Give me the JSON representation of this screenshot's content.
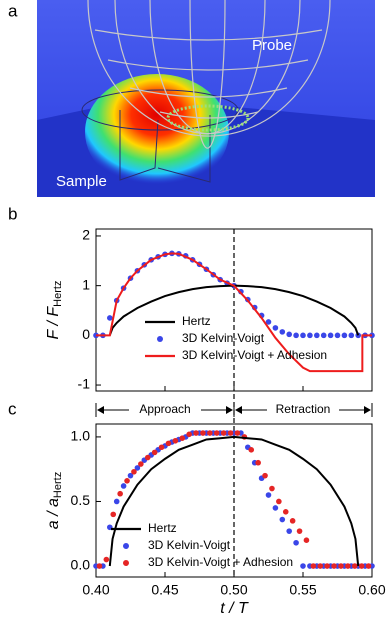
{
  "panel_a": {
    "label": "a",
    "probe": "Probe",
    "sample": "Sample"
  },
  "chart_data": [
    {
      "type": "mixed",
      "panel": "b",
      "ylabel": "F / F",
      "ylabel_sub": "Hertz",
      "xlim": [
        0.4,
        0.6
      ],
      "ylim": [
        -1.12,
        2.14
      ],
      "yticks": [
        -1,
        0,
        1,
        2
      ],
      "vline": 0.5,
      "legend": "lower center",
      "series": [
        {
          "name": "Hertz",
          "style": "line",
          "color": "#000000",
          "x": [
            0.41,
            0.412,
            0.415,
            0.42,
            0.43,
            0.44,
            0.45,
            0.46,
            0.47,
            0.48,
            0.49,
            0.5,
            0.51,
            0.52,
            0.53,
            0.54,
            0.55,
            0.56,
            0.57,
            0.58,
            0.585,
            0.588,
            0.59
          ],
          "values": [
            0,
            0.15,
            0.25,
            0.38,
            0.55,
            0.68,
            0.79,
            0.87,
            0.93,
            0.97,
            0.99,
            1,
            0.99,
            0.97,
            0.93,
            0.87,
            0.79,
            0.68,
            0.55,
            0.38,
            0.25,
            0.15,
            0
          ]
        },
        {
          "name": "3D Kelvin-Voigt",
          "style": "dots",
          "color": "#3a46e8",
          "x": [
            0.4,
            0.405,
            0.41,
            0.415,
            0.42,
            0.425,
            0.43,
            0.435,
            0.44,
            0.445,
            0.45,
            0.455,
            0.46,
            0.465,
            0.47,
            0.475,
            0.48,
            0.485,
            0.49,
            0.495,
            0.5,
            0.505,
            0.51,
            0.515,
            0.52,
            0.525,
            0.53,
            0.535,
            0.54,
            0.545,
            0.55,
            0.555,
            0.56,
            0.565,
            0.57,
            0.575,
            0.58,
            0.585,
            0.59,
            0.595,
            0.6
          ],
          "values": [
            0,
            0,
            0.35,
            0.7,
            0.95,
            1.15,
            1.3,
            1.42,
            1.52,
            1.58,
            1.63,
            1.65,
            1.64,
            1.6,
            1.52,
            1.43,
            1.33,
            1.22,
            1.12,
            1.05,
            1.0,
            0.88,
            0.72,
            0.56,
            0.4,
            0.27,
            0.15,
            0.07,
            0.02,
            0,
            0,
            0,
            0,
            0,
            0,
            0,
            0,
            0,
            0,
            0,
            0
          ]
        },
        {
          "name": "3D Kelvin-Voigt + Adhesion",
          "style": "line",
          "color": "#ee1c1c",
          "x": [
            0.4,
            0.41,
            0.415,
            0.42,
            0.425,
            0.43,
            0.44,
            0.45,
            0.455,
            0.46,
            0.47,
            0.48,
            0.49,
            0.5,
            0.51,
            0.52,
            0.53,
            0.54,
            0.55,
            0.555,
            0.593,
            0.593,
            0.6
          ],
          "values": [
            0,
            0,
            0.7,
            0.95,
            1.15,
            1.3,
            1.52,
            1.63,
            1.65,
            1.64,
            1.52,
            1.33,
            1.12,
            1.0,
            0.7,
            0.35,
            -0.05,
            -0.38,
            -0.65,
            -0.72,
            -0.72,
            0,
            0
          ]
        }
      ]
    },
    {
      "type": "mixed",
      "panel": "c",
      "ylabel": "a / a",
      "ylabel_sub": "Hertz",
      "xlabel": "t / T",
      "xlim": [
        0.4,
        0.6
      ],
      "ylim": [
        -0.085,
        1.1
      ],
      "xticks": [
        {
          "value": 0.4,
          "label": "0.40"
        },
        0.45,
        {
          "value": 0.5,
          "label": "0.50"
        },
        0.55,
        {
          "value": 0.6,
          "label": "0.60"
        }
      ],
      "yticks": [
        {
          "value": 0,
          "label": "0.0"
        },
        0.5,
        {
          "value": 1,
          "label": "1.0"
        }
      ],
      "vline": 0.5,
      "legend": "lower left",
      "phases": [
        {
          "text": "Approach",
          "from": 0.4,
          "to": 0.5
        },
        {
          "text": "Retraction",
          "from": 0.5,
          "to": 0.6
        }
      ],
      "series": [
        {
          "name": "Hertz",
          "style": "line",
          "color": "#000000",
          "x": [
            0.41,
            0.412,
            0.415,
            0.42,
            0.43,
            0.44,
            0.45,
            0.46,
            0.47,
            0.48,
            0.49,
            0.5,
            0.51,
            0.52,
            0.53,
            0.54,
            0.55,
            0.56,
            0.57,
            0.58,
            0.585,
            0.588,
            0.59
          ],
          "values": [
            0,
            0.21,
            0.33,
            0.46,
            0.63,
            0.75,
            0.83,
            0.9,
            0.94,
            0.98,
            0.99,
            1,
            0.99,
            0.98,
            0.94,
            0.9,
            0.83,
            0.75,
            0.63,
            0.46,
            0.33,
            0.21,
            0
          ]
        },
        {
          "name": "3D Kelvin-Voigt",
          "style": "dots",
          "color": "#3a46e8",
          "x": [
            0.4,
            0.405,
            0.41,
            0.415,
            0.42,
            0.425,
            0.43,
            0.435,
            0.44,
            0.445,
            0.45,
            0.455,
            0.46,
            0.465,
            0.47,
            0.475,
            0.48,
            0.485,
            0.49,
            0.495,
            0.5,
            0.505,
            0.51,
            0.515,
            0.52,
            0.525,
            0.53,
            0.535,
            0.54,
            0.545,
            0.55,
            0.555,
            0.56,
            0.565,
            0.57,
            0.575,
            0.58,
            0.585,
            0.59,
            0.595,
            0.6
          ],
          "values": [
            0,
            0,
            0.3,
            0.5,
            0.62,
            0.7,
            0.76,
            0.82,
            0.86,
            0.9,
            0.93,
            0.96,
            0.98,
            1.0,
            1.03,
            1.03,
            1.03,
            1.03,
            1.03,
            1.03,
            1.03,
            1.03,
            0.92,
            0.8,
            0.68,
            0.55,
            0.45,
            0.36,
            0.27,
            0.18,
            0,
            0,
            0,
            0,
            0,
            0,
            0,
            0,
            0,
            0,
            0
          ]
        },
        {
          "name": "3D Kelvin-Voigt + Adhesion",
          "style": "dots",
          "color": "#e52525",
          "x": [
            0.4025,
            0.4075,
            0.4125,
            0.4175,
            0.4225,
            0.4275,
            0.4325,
            0.4375,
            0.4425,
            0.4475,
            0.4525,
            0.4575,
            0.4625,
            0.4675,
            0.4725,
            0.4775,
            0.4825,
            0.4875,
            0.4925,
            0.4975,
            0.5025,
            0.5075,
            0.5125,
            0.5175,
            0.5225,
            0.5275,
            0.5325,
            0.5375,
            0.5425,
            0.5475,
            0.5525,
            0.5575,
            0.5625,
            0.5675,
            0.5725,
            0.5775,
            0.5825,
            0.5875,
            0.5925,
            0.5975
          ],
          "values": [
            0,
            0.05,
            0.4,
            0.56,
            0.66,
            0.73,
            0.79,
            0.84,
            0.88,
            0.92,
            0.95,
            0.97,
            0.99,
            1.02,
            1.03,
            1.03,
            1.03,
            1.03,
            1.03,
            1.03,
            1.03,
            1.0,
            0.9,
            0.8,
            0.7,
            0.6,
            0.5,
            0.42,
            0.35,
            0.27,
            0.2,
            0,
            0,
            0,
            0,
            0,
            0,
            0,
            0,
            0
          ]
        }
      ]
    }
  ]
}
